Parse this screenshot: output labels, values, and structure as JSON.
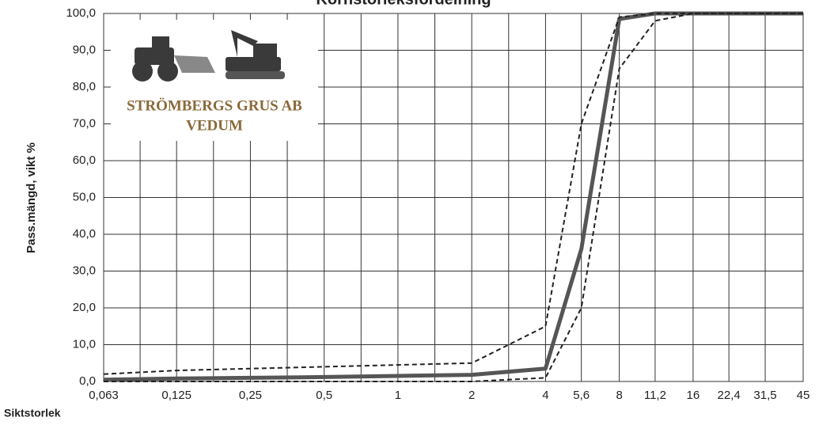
{
  "chart_data": {
    "type": "line",
    "title": "Kornstorleksfördelning",
    "ylabel": "Pass.mängd, vikt %",
    "xlabel": "Siktstorlek",
    "log_x": true,
    "grid": true,
    "x": [
      0.063,
      0.125,
      0.25,
      0.5,
      1,
      2,
      4,
      5.6,
      8,
      11.2,
      16,
      22.4,
      31.5,
      45
    ],
    "series": [
      {
        "color": "#555555",
        "style": "solid",
        "values": [
          0.5,
          0.8,
          1.0,
          1.2,
          1.5,
          1.8,
          3.5,
          36,
          98.5,
          100,
          100,
          100,
          100,
          100
        ]
      },
      {
        "color": "#222222",
        "style": "dashed",
        "values": [
          2,
          3,
          3.5,
          4,
          4.5,
          5,
          15,
          70,
          99,
          100,
          100,
          100,
          100,
          100
        ]
      },
      {
        "color": "#222222",
        "style": "dashed",
        "values": [
          0,
          0,
          0,
          0,
          0,
          0,
          1,
          20,
          85,
          98,
          100,
          100,
          100,
          100
        ]
      }
    ],
    "xlim": [
      0.063,
      45
    ],
    "xticks": [
      {
        "value": 0.063,
        "label": "0,063"
      },
      {
        "value": 0.125,
        "label": "0,125"
      },
      {
        "value": 0.25,
        "label": "0,25"
      },
      {
        "value": 0.5,
        "label": "0,5"
      },
      1,
      2,
      4,
      {
        "value": 5.6,
        "label": "5,6"
      },
      8,
      {
        "value": 11.2,
        "label": "11,2"
      },
      16,
      {
        "value": 22.4,
        "label": "22,4"
      },
      {
        "value": 31.5,
        "label": "31,5"
      },
      45
    ],
    "ylim": [
      0,
      100
    ],
    "yticks": [
      {
        "value": 0,
        "label": "0,0"
      },
      {
        "value": 10,
        "label": "10,0"
      },
      {
        "value": 20,
        "label": "20,0"
      },
      {
        "value": 30,
        "label": "30,0"
      },
      {
        "value": 40,
        "label": "40,0"
      },
      {
        "value": 50,
        "label": "50,0"
      },
      {
        "value": 60,
        "label": "60,0"
      },
      {
        "value": 70,
        "label": "70,0"
      },
      {
        "value": 80,
        "label": "80,0"
      },
      {
        "value": 90,
        "label": "90,0"
      },
      {
        "value": 100,
        "label": "100,0"
      }
    ]
  },
  "logo": {
    "lines": [
      "STRÖMBERGS GRUS AB",
      "VEDUM"
    ]
  }
}
